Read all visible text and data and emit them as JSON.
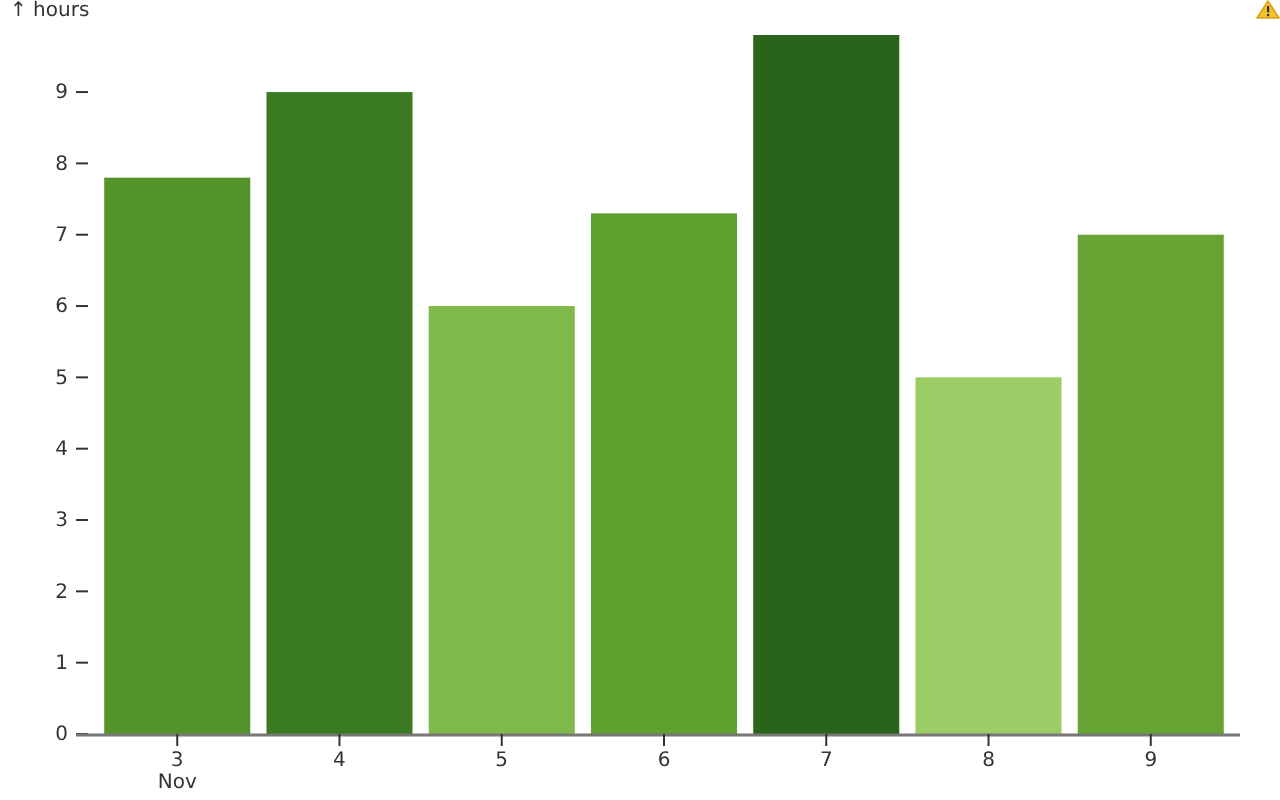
{
  "chart_data": {
    "type": "bar",
    "ylabel": "↑ hours",
    "categories": [
      "3\nNov",
      "4",
      "5",
      "6",
      "7",
      "8",
      "9"
    ],
    "values": [
      7.8,
      9,
      6,
      7.3,
      9.8,
      5,
      7
    ],
    "colors": [
      "#53932a",
      "#3a7a22",
      "#80b94b",
      "#5f9f2e",
      "#28641a",
      "#9ccc66",
      "#67a433"
    ],
    "ylim": [
      0,
      9.8
    ],
    "yticks": [
      0,
      1,
      2,
      3,
      4,
      5,
      6,
      7,
      8,
      9
    ]
  }
}
